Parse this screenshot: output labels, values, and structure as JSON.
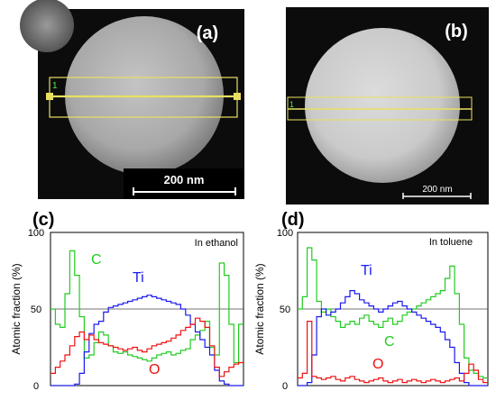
{
  "panels": {
    "a": {
      "label": "(a)",
      "scalebar": "200 nm",
      "roi_label": "1"
    },
    "b": {
      "label": "(b)",
      "scalebar": "200 nm",
      "roi_label": "1"
    },
    "c": {
      "label": "(c)",
      "annotation": "In ethanol"
    },
    "d": {
      "label": "(d)",
      "annotation": "In toluene"
    }
  },
  "colors": {
    "C": "#22cc22",
    "Ti": "#1a1aee",
    "O": "#ee1111",
    "roi": "#e8e060",
    "axis": "#000000"
  },
  "chart_data": [
    {
      "panel": "c",
      "type": "line",
      "title": "",
      "xlabel": "",
      "ylabel": "Atomic fraction (%)",
      "ylim": [
        0,
        100
      ],
      "yticks": [
        "0",
        "50",
        "100"
      ],
      "xlim": [
        0,
        100
      ],
      "reference_lines": [
        50
      ],
      "annotation": "In ethanol",
      "series": [
        {
          "name": "C",
          "color": "#22cc22",
          "values": [
            50,
            40,
            38,
            60,
            88,
            72,
            45,
            18,
            20,
            28,
            35,
            33,
            26,
            22,
            21,
            22,
            20,
            19,
            18,
            17,
            16,
            18,
            20,
            21,
            22,
            20,
            21,
            23,
            24,
            30,
            33,
            36,
            42,
            25,
            20,
            80,
            72,
            40,
            15,
            40
          ]
        },
        {
          "name": "Ti",
          "color": "#1a1aee",
          "values": [
            0,
            0,
            0,
            0,
            0,
            1,
            8,
            22,
            34,
            40,
            42,
            48,
            51,
            52,
            53,
            54,
            55,
            56,
            57,
            58,
            59,
            58,
            57,
            56,
            55,
            54,
            53,
            50,
            46,
            40,
            35,
            30,
            25,
            20,
            10,
            3,
            1,
            0,
            0,
            0
          ]
        },
        {
          "name": "O",
          "color": "#ee1111",
          "values": [
            8,
            12,
            16,
            20,
            26,
            32,
            35,
            30,
            33,
            30,
            28,
            27,
            26,
            25,
            24,
            23,
            24,
            25,
            23,
            22,
            24,
            26,
            27,
            28,
            29,
            31,
            33,
            36,
            38,
            40,
            44,
            42,
            38,
            26,
            12,
            6,
            9,
            12,
            14,
            15
          ]
        }
      ]
    },
    {
      "panel": "d",
      "type": "line",
      "title": "",
      "xlabel": "",
      "ylabel": "Atomic fraction (%)",
      "ylim": [
        0,
        100
      ],
      "yticks": [
        "0",
        "50",
        "100"
      ],
      "xlim": [
        0,
        100
      ],
      "reference_lines": [
        50
      ],
      "annotation": "In toluene",
      "series": [
        {
          "name": "C",
          "color": "#22cc22",
          "values": [
            50,
            58,
            90,
            82,
            55,
            48,
            50,
            45,
            42,
            38,
            40,
            42,
            40,
            44,
            46,
            42,
            40,
            38,
            42,
            44,
            40,
            42,
            46,
            48,
            50,
            52,
            54,
            56,
            58,
            60,
            62,
            70,
            78,
            60,
            40,
            18,
            10,
            8,
            6,
            5
          ]
        },
        {
          "name": "Ti",
          "color": "#1a1aee",
          "values": [
            0,
            0,
            2,
            20,
            45,
            50,
            46,
            48,
            50,
            54,
            58,
            62,
            60,
            56,
            54,
            52,
            50,
            48,
            50,
            52,
            54,
            55,
            52,
            50,
            48,
            46,
            44,
            42,
            40,
            38,
            35,
            30,
            25,
            15,
            8,
            2,
            0,
            0,
            0,
            0
          ]
        },
        {
          "name": "O",
          "color": "#ee1111",
          "values": [
            5,
            8,
            42,
            6,
            5,
            4,
            5,
            6,
            4,
            3,
            5,
            6,
            4,
            3,
            2,
            3,
            4,
            5,
            3,
            2,
            3,
            4,
            2,
            3,
            4,
            3,
            2,
            3,
            4,
            3,
            2,
            3,
            4,
            5,
            3,
            8,
            14,
            10,
            4,
            2
          ]
        }
      ]
    }
  ]
}
